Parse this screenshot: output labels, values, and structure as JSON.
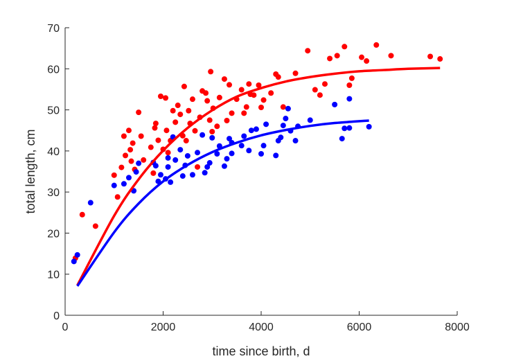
{
  "chart_data": {
    "type": "scatter",
    "title": "",
    "xlabel": "time since birth, d",
    "ylabel": "total length, cm",
    "xlim": [
      0,
      8000
    ],
    "ylim": [
      0,
      70
    ],
    "xticks": [
      0,
      2000,
      4000,
      6000,
      8000
    ],
    "yticks": [
      0,
      10,
      20,
      30,
      40,
      50,
      60,
      70
    ],
    "grid": false,
    "legend": "none",
    "series": [
      {
        "color": "#ff0000",
        "points": [
          [
            210,
            13.9
          ],
          [
            350,
            24.5
          ],
          [
            620,
            21.7
          ],
          [
            1000,
            34.1
          ],
          [
            1070,
            28.8
          ],
          [
            1150,
            36.0
          ],
          [
            1200,
            43.6
          ],
          [
            1230,
            38.9
          ],
          [
            1300,
            45.0
          ],
          [
            1330,
            40.3
          ],
          [
            1350,
            37.5
          ],
          [
            1380,
            41.9
          ],
          [
            1420,
            35.5
          ],
          [
            1500,
            49.4
          ],
          [
            1550,
            43.6
          ],
          [
            1600,
            37.8
          ],
          [
            1750,
            40.9
          ],
          [
            1800,
            34.6
          ],
          [
            1830,
            45.6
          ],
          [
            1850,
            46.7
          ],
          [
            1900,
            42.6
          ],
          [
            1950,
            53.3
          ],
          [
            2000,
            40.4
          ],
          [
            2050,
            52.9
          ],
          [
            2070,
            45.0
          ],
          [
            2100,
            39.6
          ],
          [
            2150,
            42.5
          ],
          [
            2200,
            49.8
          ],
          [
            2250,
            47.0
          ],
          [
            2300,
            51.1
          ],
          [
            2350,
            48.9
          ],
          [
            2400,
            43.7
          ],
          [
            2430,
            55.7
          ],
          [
            2470,
            42.5
          ],
          [
            2520,
            49.8
          ],
          [
            2550,
            46.7
          ],
          [
            2600,
            52.6
          ],
          [
            2650,
            44.9
          ],
          [
            2700,
            36.1
          ],
          [
            2750,
            48.2
          ],
          [
            2800,
            54.6
          ],
          [
            2870,
            54.1
          ],
          [
            2900,
            52.2
          ],
          [
            2950,
            47.5
          ],
          [
            2970,
            59.3
          ],
          [
            3000,
            44.7
          ],
          [
            3020,
            50.4
          ],
          [
            3100,
            46.0
          ],
          [
            3150,
            53.0
          ],
          [
            3250,
            57.5
          ],
          [
            3300,
            47.4
          ],
          [
            3350,
            56.1
          ],
          [
            3400,
            49.2
          ],
          [
            3500,
            52.6
          ],
          [
            3600,
            54.9
          ],
          [
            3650,
            49.2
          ],
          [
            3700,
            50.7
          ],
          [
            3750,
            56.3
          ],
          [
            3780,
            53.8
          ],
          [
            3850,
            53.6
          ],
          [
            3950,
            56.0
          ],
          [
            4000,
            50.6
          ],
          [
            4050,
            52.4
          ],
          [
            4200,
            54.1
          ],
          [
            4300,
            58.7
          ],
          [
            4350,
            58.0
          ],
          [
            4450,
            50.7
          ],
          [
            4700,
            58.9
          ],
          [
            4950,
            64.4
          ],
          [
            5100,
            54.9
          ],
          [
            5200,
            53.6
          ],
          [
            5300,
            56.3
          ],
          [
            5400,
            62.5
          ],
          [
            5550,
            63.2
          ],
          [
            5700,
            65.4
          ],
          [
            5800,
            56.0
          ],
          [
            5850,
            57.7
          ],
          [
            6050,
            62.8
          ],
          [
            6150,
            61.9
          ],
          [
            6350,
            65.8
          ],
          [
            6650,
            63.2
          ],
          [
            7450,
            63.0
          ],
          [
            7650,
            62.4
          ]
        ]
      },
      {
        "color": "#0000ff",
        "points": [
          [
            180,
            13.1
          ],
          [
            250,
            14.7
          ],
          [
            520,
            27.4
          ],
          [
            1000,
            31.6
          ],
          [
            1200,
            32.0
          ],
          [
            1300,
            33.5
          ],
          [
            1400,
            30.3
          ],
          [
            1450,
            34.9
          ],
          [
            1500,
            37.0
          ],
          [
            1800,
            37.2
          ],
          [
            1850,
            36.4
          ],
          [
            1900,
            32.6
          ],
          [
            1950,
            34.2
          ],
          [
            2050,
            33.2
          ],
          [
            2100,
            36.1
          ],
          [
            2100,
            38.3
          ],
          [
            2150,
            32.4
          ],
          [
            2200,
            43.4
          ],
          [
            2250,
            37.8
          ],
          [
            2350,
            40.3
          ],
          [
            2400,
            33.9
          ],
          [
            2450,
            36.5
          ],
          [
            2500,
            38.8
          ],
          [
            2600,
            34.2
          ],
          [
            2700,
            39.6
          ],
          [
            2800,
            43.9
          ],
          [
            2850,
            34.7
          ],
          [
            2900,
            36.1
          ],
          [
            2950,
            37.1
          ],
          [
            3000,
            43.2
          ],
          [
            3100,
            39.3
          ],
          [
            3150,
            41.2
          ],
          [
            3250,
            36.3
          ],
          [
            3300,
            38.1
          ],
          [
            3350,
            43.0
          ],
          [
            3400,
            39.4
          ],
          [
            3400,
            42.0
          ],
          [
            3600,
            41.3
          ],
          [
            3650,
            43.6
          ],
          [
            3750,
            40.1
          ],
          [
            3800,
            45.0
          ],
          [
            3900,
            45.3
          ],
          [
            4000,
            39.3
          ],
          [
            4050,
            41.3
          ],
          [
            4100,
            46.5
          ],
          [
            4300,
            38.9
          ],
          [
            4350,
            42.5
          ],
          [
            4400,
            43.3
          ],
          [
            4450,
            46.2
          ],
          [
            4500,
            47.9
          ],
          [
            4550,
            50.3
          ],
          [
            4600,
            44.9
          ],
          [
            4700,
            42.5
          ],
          [
            4750,
            46.0
          ],
          [
            5000,
            47.5
          ],
          [
            5500,
            51.3
          ],
          [
            5650,
            43.0
          ],
          [
            5700,
            45.5
          ],
          [
            5800,
            45.6
          ],
          [
            5800,
            52.7
          ],
          [
            6200,
            45.9
          ]
        ]
      }
    ],
    "fit_curves": [
      {
        "color": "#ff0000",
        "x": [
          250,
          1000,
          1500,
          2000,
          2500,
          3000,
          3500,
          4000,
          4500,
          5000,
          5500,
          6000,
          6500,
          7000,
          7650
        ],
        "y": [
          7.3,
          24.2,
          33.1,
          40.1,
          45.6,
          49.9,
          53.2,
          55.3,
          56.9,
          58.0,
          58.8,
          59.4,
          59.7,
          60.0,
          60.2
        ]
      },
      {
        "color": "#0000ff",
        "x": [
          250,
          1000,
          1500,
          2000,
          2500,
          3000,
          3500,
          4000,
          4500,
          5000,
          5500,
          6200
        ],
        "y": [
          7.1,
          20.2,
          27.2,
          32.6,
          36.6,
          39.7,
          42.0,
          43.8,
          45.1,
          46.1,
          46.8,
          47.4
        ]
      }
    ]
  }
}
